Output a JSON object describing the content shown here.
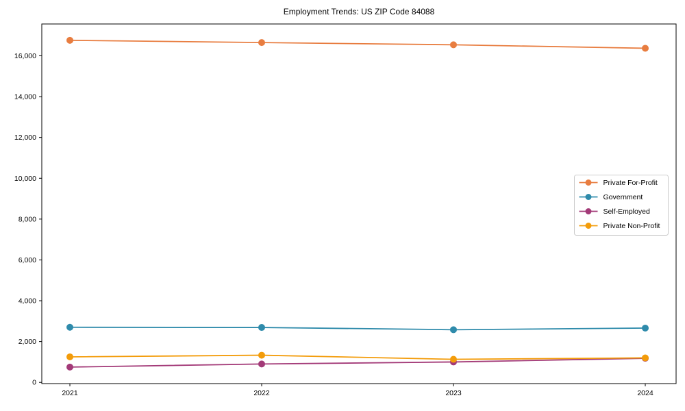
{
  "chart_data": {
    "type": "line",
    "title": "Employment Trends: US ZIP Code 84088",
    "xlabel": "",
    "ylabel": "",
    "x_categories": [
      "2021",
      "2022",
      "2023",
      "2024"
    ],
    "series": [
      {
        "name": "Private For-Profit",
        "color": "#e87d40",
        "values": [
          16760,
          16650,
          16540,
          16370
        ]
      },
      {
        "name": "Government",
        "color": "#2f8bab",
        "values": [
          2700,
          2690,
          2580,
          2660
        ]
      },
      {
        "name": "Self-Employed",
        "color": "#a33a78",
        "values": [
          750,
          900,
          1000,
          1180
        ]
      },
      {
        "name": "Private Non-Profit",
        "color": "#f39c0a",
        "values": [
          1250,
          1330,
          1130,
          1200
        ]
      }
    ],
    "ylim": [
      -60,
      17560
    ],
    "yticks": [
      {
        "value": 0,
        "label": "0"
      },
      {
        "value": 2000,
        "label": "2,000"
      },
      {
        "value": 4000,
        "label": "4,000"
      },
      {
        "value": 6000,
        "label": "6,000"
      },
      {
        "value": 8000,
        "label": "8,000"
      },
      {
        "value": 10000,
        "label": "10,000"
      },
      {
        "value": 12000,
        "label": "12,000"
      },
      {
        "value": 14000,
        "label": "14,000"
      },
      {
        "value": 16000,
        "label": "16,000"
      }
    ],
    "grid": false,
    "marker": "circle",
    "legend_position": "center right"
  },
  "colors": {
    "background": "#ffffff",
    "axis": "#000000",
    "tick_text": "#000000",
    "legend_border": "#cccccc",
    "legend_background": "#ffffff"
  }
}
